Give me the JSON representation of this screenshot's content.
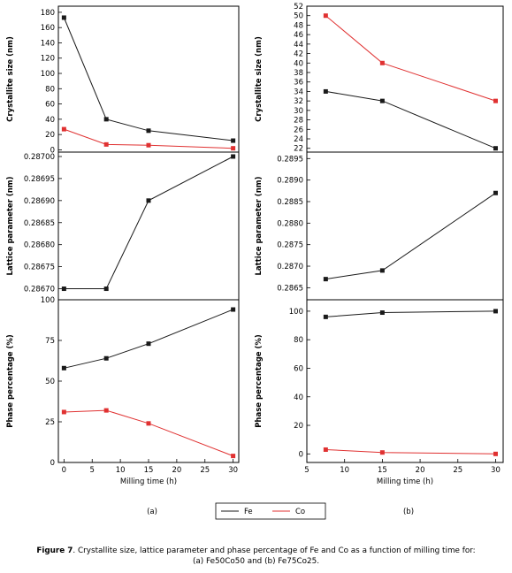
{
  "colors": {
    "fe": "#1a1a1a",
    "co": "#e03131"
  },
  "legend": [
    {
      "name": "Fe",
      "color": "#1a1a1a"
    },
    {
      "name": "Co",
      "color": "#e03131"
    }
  ],
  "panel_labels": {
    "a": "(a)",
    "b": "(b)"
  },
  "caption": {
    "figure_label": "Figure 7",
    "line1": ". Crystallite size, lattice parameter and phase percentage of Fe and Co as a function of milling time for:",
    "line2": "(a) Fe50Co50 and (b) Fe75Co25."
  },
  "chart_data": [
    {
      "panel": "a",
      "type": "line",
      "ylabel": "Crystallite size (nm)",
      "xlabel": "",
      "xlim": [
        -1,
        31
      ],
      "ylim": [
        -3,
        188
      ],
      "yticks": [
        0,
        20,
        40,
        60,
        80,
        100,
        120,
        140,
        160,
        180
      ],
      "series": [
        {
          "name": "Fe",
          "x": [
            0,
            7.5,
            15,
            30
          ],
          "y": [
            173,
            40,
            25,
            12
          ]
        },
        {
          "name": "Co",
          "x": [
            0,
            7.5,
            15,
            30
          ],
          "y": [
            27,
            7,
            6,
            2
          ]
        }
      ]
    },
    {
      "panel": "a",
      "type": "line",
      "ylabel": "Lattice parameter (nm)",
      "xlabel": "",
      "xlim": [
        -1,
        31
      ],
      "ylim": [
        0.286675,
        0.28701
      ],
      "yticks": [
        "0.28670",
        "0.28675",
        "0.28680",
        "0.28685",
        "0.28690",
        "0.28695",
        "0.28700"
      ],
      "series": [
        {
          "name": "Fe",
          "x": [
            0,
            7.5,
            15,
            30
          ],
          "y": [
            0.2867,
            0.2867,
            0.2869,
            0.287
          ]
        }
      ]
    },
    {
      "panel": "a",
      "type": "line",
      "ylabel": "Phase percentage (%)",
      "xlabel": "Milling time (h)",
      "xlim": [
        -1,
        31
      ],
      "ylim": [
        0,
        100
      ],
      "yticks": [
        0,
        25,
        50,
        75,
        100
      ],
      "xticks": [
        0,
        5,
        10,
        15,
        20,
        25,
        30
      ],
      "series": [
        {
          "name": "Fe",
          "x": [
            0,
            7.5,
            15,
            30
          ],
          "y": [
            58,
            64,
            73,
            94
          ]
        },
        {
          "name": "Co",
          "x": [
            0,
            7.5,
            15,
            30
          ],
          "y": [
            31,
            32,
            24,
            4
          ]
        }
      ]
    },
    {
      "panel": "b",
      "type": "line",
      "ylabel": "Crystallite size (nm)",
      "xlabel": "",
      "xlim": [
        5,
        31
      ],
      "ylim": [
        21.2,
        52
      ],
      "yticks": [
        22,
        24,
        26,
        28,
        30,
        32,
        34,
        36,
        38,
        40,
        42,
        44,
        46,
        48,
        50,
        52
      ],
      "series": [
        {
          "name": "Fe",
          "x": [
            7.5,
            15,
            30
          ],
          "y": [
            34,
            32,
            22
          ]
        },
        {
          "name": "Co",
          "x": [
            7.5,
            15,
            30
          ],
          "y": [
            50,
            40,
            32
          ]
        }
      ]
    },
    {
      "panel": "b",
      "type": "line",
      "ylabel": "Lattice parameter (nm)",
      "xlabel": "",
      "xlim": [
        5,
        31
      ],
      "ylim": [
        0.28622,
        0.28965
      ],
      "yticks": [
        "0.2865",
        "0.2870",
        "0.2875",
        "0.2880",
        "0.2885",
        "0.2890",
        "0.2895"
      ],
      "series": [
        {
          "name": "Fe",
          "x": [
            7.5,
            15,
            30
          ],
          "y": [
            0.2867,
            0.2869,
            0.2887
          ]
        }
      ]
    },
    {
      "panel": "b",
      "type": "line",
      "ylabel": "Phase percentage (%)",
      "xlabel": "Milling time (h)",
      "xlim": [
        5,
        31
      ],
      "ylim": [
        -6,
        108
      ],
      "yticks": [
        0,
        20,
        40,
        60,
        80,
        100
      ],
      "xticks": [
        5,
        10,
        15,
        20,
        25,
        30
      ],
      "series": [
        {
          "name": "Fe",
          "x": [
            7.5,
            15,
            30
          ],
          "y": [
            96,
            99,
            100
          ]
        },
        {
          "name": "Co",
          "x": [
            7.5,
            15,
            30
          ],
          "y": [
            3,
            1,
            0
          ]
        }
      ]
    }
  ]
}
